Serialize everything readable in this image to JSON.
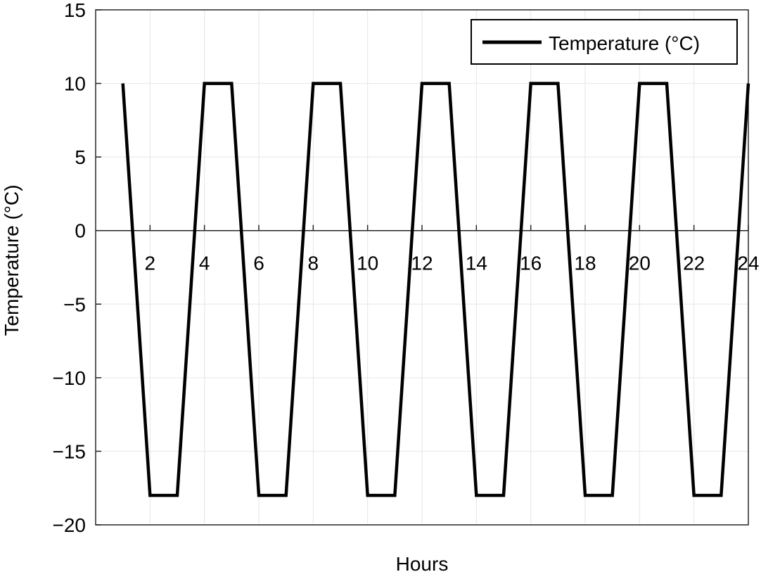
{
  "chart_data": {
    "type": "line",
    "title": "",
    "xlabel": "Hours",
    "ylabel": "Temperature (°C)",
    "xlim": [
      0,
      24
    ],
    "ylim": [
      -20,
      15
    ],
    "xticks": [
      2,
      4,
      6,
      8,
      10,
      12,
      14,
      16,
      18,
      20,
      22,
      24
    ],
    "xtick_labels": [
      "2",
      "4",
      "6",
      "8",
      "10",
      "12",
      "14",
      "16",
      "18",
      "20",
      "22",
      "24"
    ],
    "yticks": [
      15,
      10,
      5,
      0,
      -5,
      -10,
      -15,
      -20
    ],
    "ytick_labels": [
      "15",
      "10",
      "5",
      "0",
      "−5",
      "−10",
      "−15",
      "−20"
    ],
    "grid": true,
    "legend_position": "top-right",
    "series": [
      {
        "name": "Temperature (°C)",
        "color": "#000000",
        "x": [
          1,
          2,
          3,
          4,
          5,
          6,
          7,
          8,
          9,
          10,
          11,
          12,
          13,
          14,
          15,
          16,
          17,
          18,
          19,
          20,
          21,
          22,
          23,
          24
        ],
        "y": [
          10,
          -18,
          -18,
          10,
          10,
          -18,
          -18,
          10,
          10,
          -18,
          -18,
          10,
          10,
          -18,
          -18,
          10,
          10,
          -18,
          -18,
          10,
          10,
          -18,
          -18,
          10
        ]
      }
    ]
  }
}
